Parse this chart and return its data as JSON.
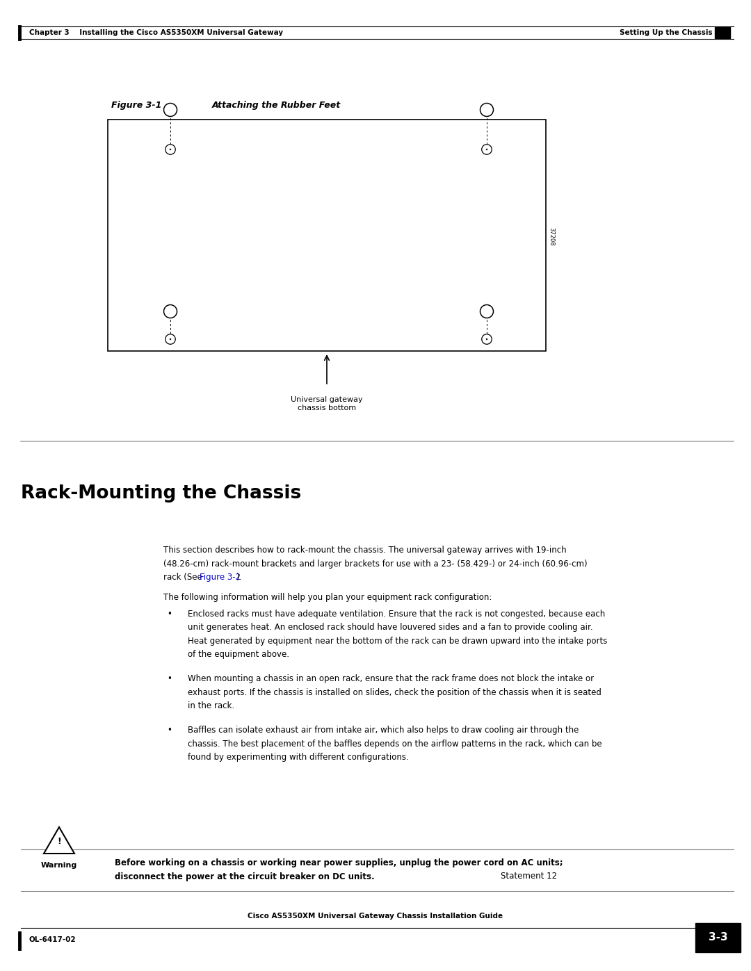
{
  "page_width": 10.8,
  "page_height": 13.97,
  "dpi": 100,
  "bg_color": "#ffffff",
  "header_left": "Chapter 3    Installing the Cisco AS5350XM Universal Gateway",
  "header_right": "Setting Up the Chassis",
  "footer_left": "OL-6417-02",
  "footer_center": "Cisco AS5350XM Universal Gateway Chassis Installation Guide",
  "footer_page": "3-3",
  "figure_label": "Figure 3-1",
  "figure_caption": "Attaching the Rubber Feet",
  "callout_label": "Universal gateway\nchassis bottom",
  "side_text": "37208",
  "section_title": "Rack-Mounting the Chassis",
  "para1_line1": "This section describes how to rack-mount the chassis. The universal gateway arrives with 19-inch",
  "para1_line2": "(48.26-cm) rack-mount brackets and larger brackets for use with a 23- (58.429-) or 24-inch (60.96-cm)",
  "para1_line3": "rack (See ",
  "para1_link": "Figure 3-2",
  "para1_line3end": ").",
  "para2": "The following information will help you plan your equipment rack configuration:",
  "bullet1_line1": "Enclosed racks must have adequate ventilation. Ensure that the rack is not congested, because each",
  "bullet1_line2": "unit generates heat. An enclosed rack should have louvered sides and a fan to provide cooling air.",
  "bullet1_line3": "Heat generated by equipment near the bottom of the rack can be drawn upward into the intake ports",
  "bullet1_line4": "of the equipment above.",
  "bullet2_line1": "When mounting a chassis in an open rack, ensure that the rack frame does not block the intake or",
  "bullet2_line2": "exhaust ports. If the chassis is installed on slides, check the position of the chassis when it is seated",
  "bullet2_line3": "in the rack.",
  "bullet3_line1": "Baffles can isolate exhaust air from intake air, which also helps to draw cooling air through the",
  "bullet3_line2": "chassis. The best placement of the baffles depends on the airflow patterns in the rack, which can be",
  "bullet3_line3": "found by experimenting with different configurations.",
  "warning_bold": "Before working on a chassis or working near power supplies, unplug the power cord on AC units;\ndisconnect the power at the circuit breaker on DC units.",
  "warning_normal": "Statement 12",
  "warning_label": "Warning",
  "link_color": "#0000CC"
}
